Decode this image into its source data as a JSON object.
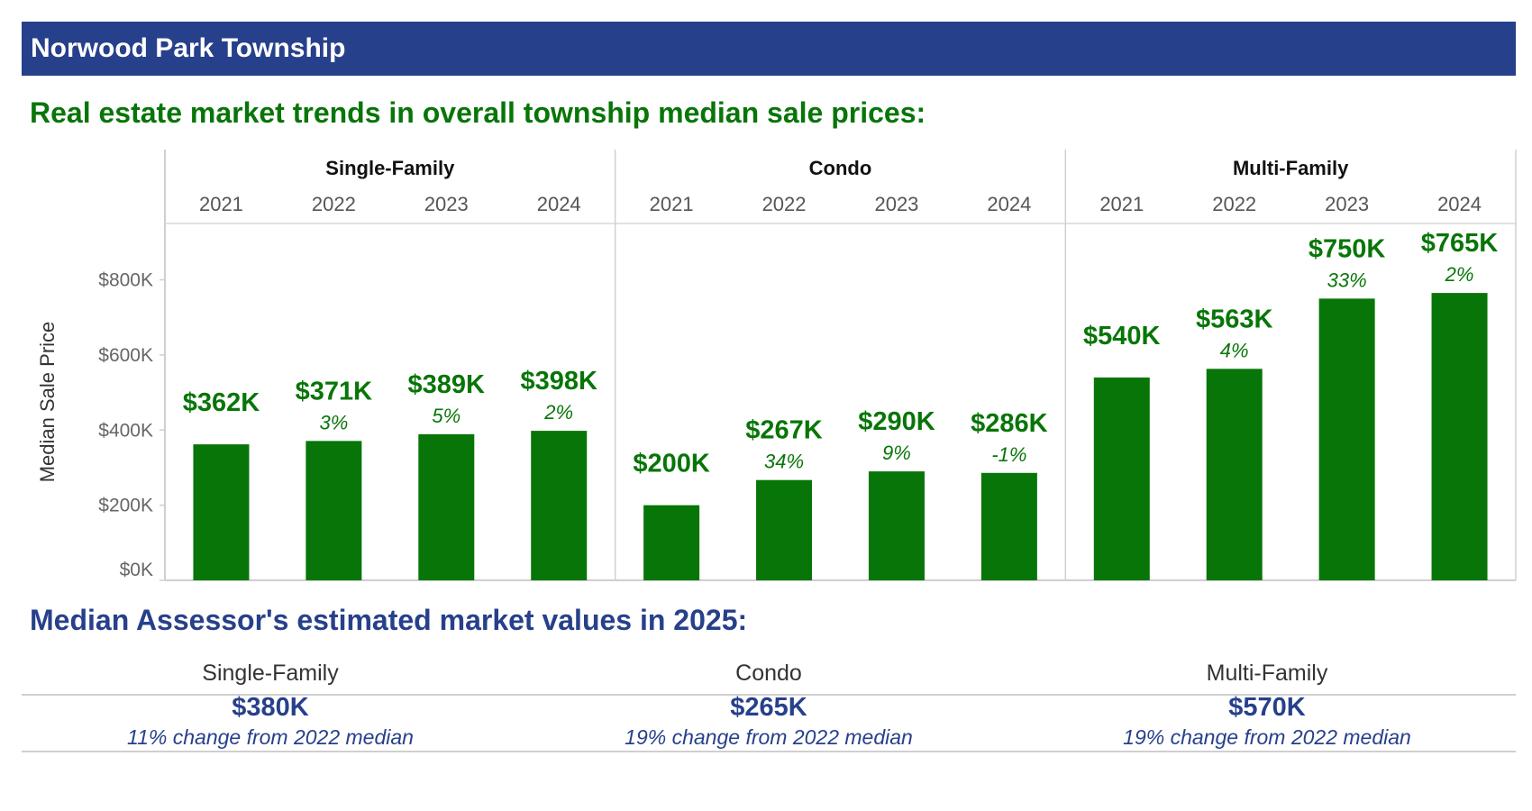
{
  "header": {
    "title": "Norwood Park Township"
  },
  "trends_title": "Real estate market trends in overall township median sale prices:",
  "assessor_title": "Median Assessor's estimated market values in 2025:",
  "colors": {
    "header_bg": "#27408b",
    "bar": "#087508",
    "blue_text": "#27408b"
  },
  "chart_data": {
    "type": "bar",
    "ylabel": "Median Sale Price",
    "ylim": [
      0,
      950
    ],
    "y_unit": "thousands of dollars",
    "y_ticks": [
      0,
      200,
      400,
      600,
      800
    ],
    "y_tick_labels": [
      "$0K",
      "$200K",
      "$400K",
      "$600K",
      "$800K"
    ],
    "grid": false,
    "panels": [
      {
        "name": "Single-Family",
        "categories": [
          "2021",
          "2022",
          "2023",
          "2024"
        ],
        "values": [
          362,
          371,
          389,
          398
        ],
        "value_labels": [
          "$362K",
          "$371K",
          "$389K",
          "$398K"
        ],
        "change_labels": [
          "",
          "3%",
          "5%",
          "2%"
        ]
      },
      {
        "name": "Condo",
        "categories": [
          "2021",
          "2022",
          "2023",
          "2024"
        ],
        "values": [
          200,
          267,
          290,
          286
        ],
        "value_labels": [
          "$200K",
          "$267K",
          "$290K",
          "$286K"
        ],
        "change_labels": [
          "",
          "34%",
          "9%",
          "-1%"
        ]
      },
      {
        "name": "Multi-Family",
        "categories": [
          "2021",
          "2022",
          "2023",
          "2024"
        ],
        "values": [
          540,
          563,
          750,
          765
        ],
        "value_labels": [
          "$540K",
          "$563K",
          "$750K",
          "$765K"
        ],
        "change_labels": [
          "",
          "4%",
          "33%",
          "2%"
        ]
      }
    ]
  },
  "assessor": [
    {
      "category": "Single-Family",
      "value": "$380K",
      "change": "11% change from 2022 median"
    },
    {
      "category": "Condo",
      "value": "$265K",
      "change": "19% change from 2022 median"
    },
    {
      "category": "Multi-Family",
      "value": "$570K",
      "change": "19% change from 2022 median"
    }
  ]
}
